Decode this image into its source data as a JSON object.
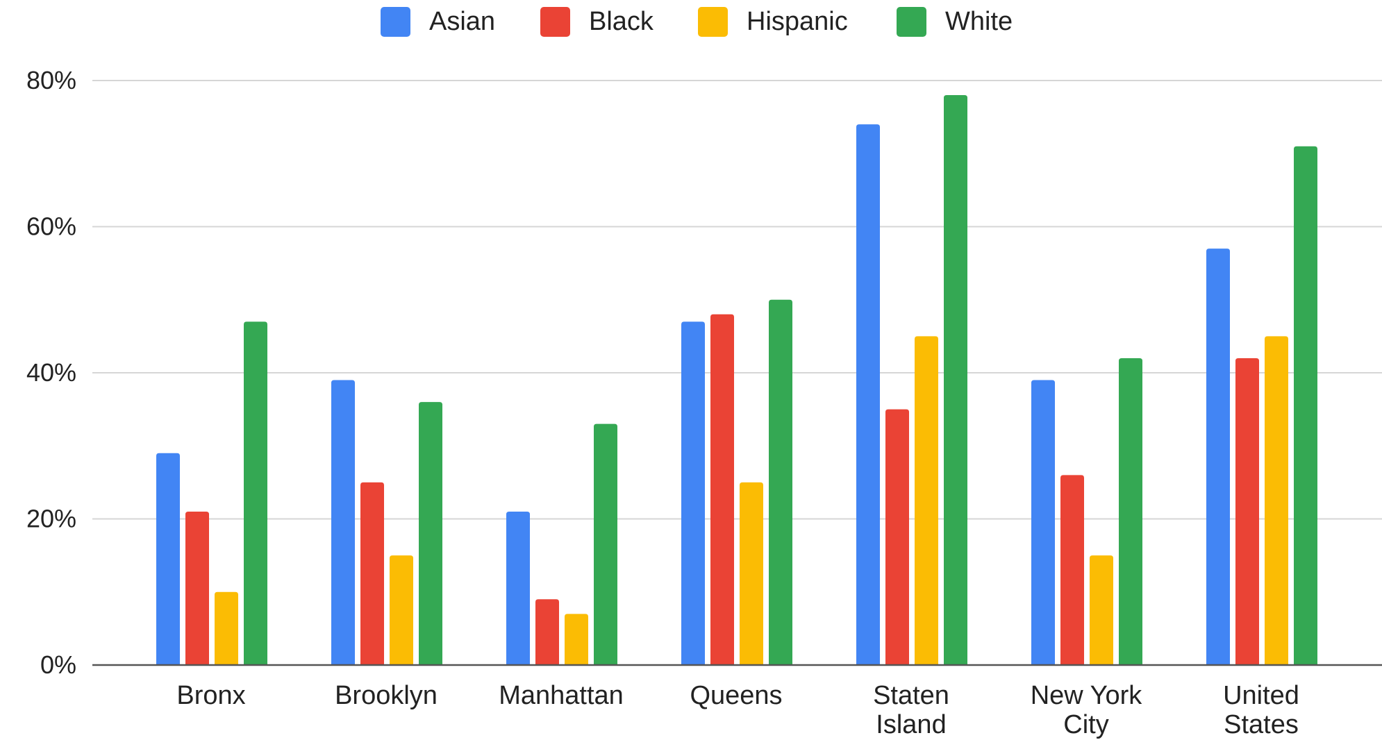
{
  "chart_data": {
    "type": "bar",
    "categories": [
      [
        "Bronx"
      ],
      [
        "Brooklyn"
      ],
      [
        "Manhattan"
      ],
      [
        "Queens"
      ],
      [
        "Staten",
        "Island"
      ],
      [
        "New York",
        "City"
      ],
      [
        "United",
        "States"
      ]
    ],
    "series": [
      {
        "name": "Asian",
        "color": "#4285F4",
        "values": [
          29,
          39,
          21,
          47,
          74,
          39,
          57
        ]
      },
      {
        "name": "Black",
        "color": "#EA4335",
        "values": [
          21,
          25,
          9,
          48,
          35,
          26,
          42
        ]
      },
      {
        "name": "Hispanic",
        "color": "#FBBC04",
        "values": [
          10,
          15,
          7,
          25,
          45,
          15,
          45
        ]
      },
      {
        "name": "White",
        "color": "#34A853",
        "values": [
          47,
          36,
          33,
          50,
          78,
          42,
          71
        ]
      }
    ],
    "ylim": [
      0,
      80
    ],
    "yticks": [
      0,
      20,
      40,
      60,
      80
    ],
    "ytick_format": "percent",
    "grid": true,
    "legend_position": "top"
  }
}
